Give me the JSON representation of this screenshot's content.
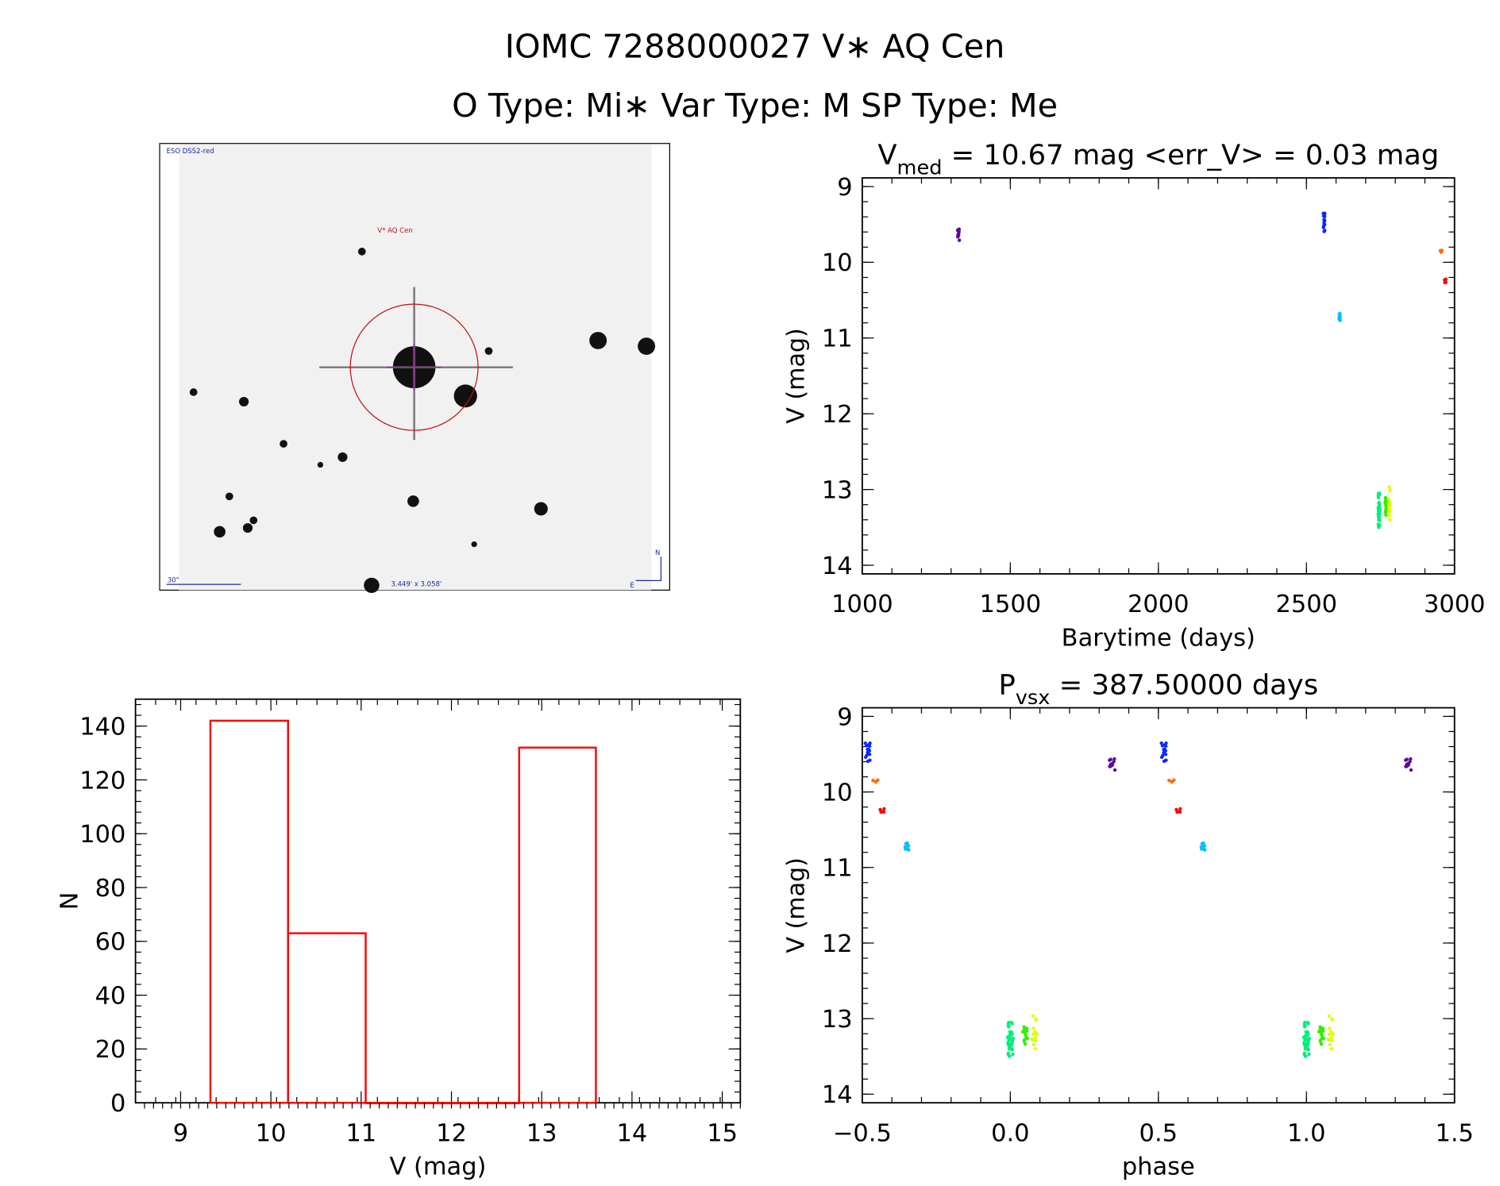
{
  "header": {
    "title": "IOMC 7288000027   V∗ AQ Cen",
    "subtitle": "O Type: Mi∗   Var Type: M   SP Type: Me"
  },
  "finder_image": {
    "survey_label": "ESO DSS2-red",
    "target_label": "V* AQ Cen",
    "scale_label": "30\"",
    "fov_label": "3.449' x 3.058'",
    "north_label": "N",
    "east_label": "E"
  },
  "chart_data": [
    {
      "id": "lightcurve",
      "type": "scatter",
      "title_main": "V",
      "title_sub": "med",
      "title_rest": " = 10.67 mag <err_V> = 0.03 mag",
      "xlabel": "Barytime (days)",
      "ylabel": "V (mag)",
      "xlim": [
        1000,
        3000
      ],
      "ylim": [
        14.114,
        8.886
      ],
      "xticks": [
        "1000",
        "1500",
        "2000",
        "2500",
        "3000"
      ],
      "xtick_values": [
        1000,
        1500,
        2000,
        2500,
        3000
      ],
      "yticks": [
        "9",
        "10",
        "11",
        "12",
        "13",
        "14"
      ],
      "ytick_values": [
        9,
        10,
        11,
        12,
        13,
        14
      ],
      "clusters": [
        {
          "t": 1325,
          "phase": 0.344,
          "vmin": 9.55,
          "vmax": 9.72,
          "n": 12,
          "color": "#5a0a9a"
        },
        {
          "t": 2560,
          "phase": 0.52,
          "vmin": 9.32,
          "vmax": 9.62,
          "n": 15,
          "color": "#0a28ff"
        },
        {
          "t": 2612,
          "phase": 0.65,
          "vmin": 10.66,
          "vmax": 10.78,
          "n": 8,
          "color": "#00c0ff"
        },
        {
          "t": 2745,
          "phase": 0.0,
          "vmin": 13.05,
          "vmax": 13.5,
          "n": 40,
          "color": "#00f07a"
        },
        {
          "t": 2768,
          "phase": 0.05,
          "vmin": 13.1,
          "vmax": 13.35,
          "n": 15,
          "color": "#30f000"
        },
        {
          "t": 2780,
          "phase": 0.08,
          "vmin": 12.92,
          "vmax": 13.4,
          "n": 15,
          "color": "#e0ff00"
        },
        {
          "t": 2955,
          "phase": 0.545,
          "vmin": 9.84,
          "vmax": 9.87,
          "n": 4,
          "color": "#ff6a00"
        },
        {
          "t": 2968,
          "phase": 0.565,
          "vmin": 10.22,
          "vmax": 10.28,
          "n": 5,
          "color": "#ff0000"
        }
      ]
    },
    {
      "id": "phased",
      "type": "scatter",
      "title_main": "P",
      "title_sub": "vsx",
      "title_rest": " = 387.50000 days",
      "xlabel": "phase",
      "ylabel": "V (mag)",
      "xlim": [
        -0.5,
        1.5
      ],
      "ylim": [
        14.114,
        8.886
      ],
      "xticks": [
        "−0.5",
        "0.0",
        "0.5",
        "1.0",
        "1.5"
      ],
      "xtick_values": [
        -0.5,
        0,
        0.5,
        1.0,
        1.5
      ],
      "yticks": [
        "9",
        "10",
        "11",
        "12",
        "13",
        "14"
      ],
      "ytick_values": [
        9,
        10,
        11,
        12,
        13,
        14
      ]
    },
    {
      "id": "histogram",
      "type": "bar",
      "xlabel": "V (mag)",
      "ylabel": "N",
      "xlim": [
        8.5,
        15.2
      ],
      "ylim": [
        0,
        150
      ],
      "bin_edges": [
        9.33,
        10.19,
        11.05,
        11.9,
        12.75,
        13.6
      ],
      "counts": [
        142,
        63,
        0,
        0,
        132
      ],
      "bar_color": "#ff0000",
      "xticks": [
        "9",
        "10",
        "11",
        "12",
        "13",
        "14",
        "15"
      ],
      "xtick_values": [
        9,
        10,
        11,
        12,
        13,
        14,
        15
      ],
      "yticks": [
        "0",
        "20",
        "40",
        "60",
        "80",
        "100",
        "120",
        "140"
      ],
      "ytick_values": [
        0,
        20,
        40,
        60,
        80,
        100,
        120,
        140
      ]
    }
  ]
}
